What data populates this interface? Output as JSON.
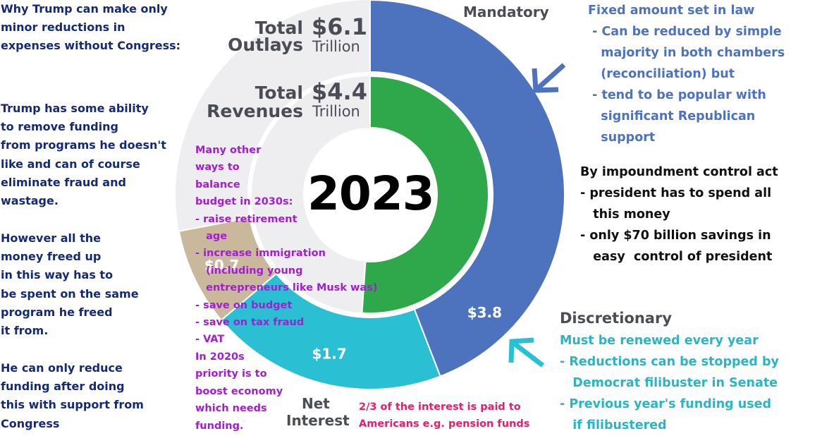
{
  "chart_data": {
    "type": "pie",
    "year_label": "2023",
    "outer_ring": {
      "title_line1": "Total",
      "title_line2": "Outlays",
      "amount": "$6.1",
      "unit": "Trillion",
      "total": 6.1,
      "slices": [
        {
          "name": "Mandatory",
          "value": 3.8,
          "label": "$3.8",
          "color": "#4e73be"
        },
        {
          "name": "Discretionary",
          "value": 1.7,
          "label": "$1.7",
          "color": "#2bbfd3"
        },
        {
          "name": "Net Interest",
          "value": 0.7,
          "label": "$0.7",
          "color": "#c9b89b"
        }
      ],
      "remainder_color": "#eeeef0"
    },
    "inner_ring": {
      "title_line1": "Total",
      "title_line2": "Revenues",
      "amount": "$4.4",
      "unit": "Trillion",
      "value": 4.4,
      "color": "#2ea84b",
      "remainder_color": "#eeeef0"
    },
    "category_labels": {
      "mandatory": "Mandatory",
      "discretionary": "Discretionary",
      "net_interest_line1": "Net",
      "net_interest_line2": "Interest"
    }
  },
  "annotations": {
    "left_title": "Why Trump can make only\nminor reductions in\nexpenses without Congress:",
    "left_funding": "Trump has some ability\nto remove funding\nfrom programs he doesn't\nlike and can of course\neliminate fraud and\nwastage.",
    "left_however": "However all the\nmoney freed up\nin this way has to\nbe spent on the same\nprogram he freed\nit from.",
    "left_support": "He can only reduce\nfunding after doing\nthis with support from\nCongress",
    "mandatory_note": "Fixed amount set in law\n - Can be reduced by simple\n   majority in both chambers\n   (reconciliation) but\n - tend to be popular with\n   significant Republican\n   support",
    "impoundment_note": "By impoundment control act\n- president has to spend all\n   this money\n- only $70 billion savings in\n   easy  control of president",
    "discretionary_note": "Must be renewed every year\n- Reductions can be stopped by\n   Democrat filibuster in Senate\n- Previous year's funding used\n   if filibustered",
    "balance_note": "Many other\nways to\nbalance\nbudget in 2030s:\n- raise retirement\n   age\n- increase immigration\n   (including young\n   entrepreneurs like Musk was)\n- save on budget\n- save on tax fraud\n- VAT\nIn 2020s\npriority is to\nboost economy\nwhich needs\nfunding.",
    "interest_note": "2/3 of the interest is paid to\nAmericans e.g. pension funds"
  },
  "icons": {
    "mandatory_arrow": "arrow-pointing-down-left-icon",
    "discretionary_arrow": "arrow-pointing-up-left-icon"
  },
  "colors": {
    "arrow": "#4e73be",
    "arrow_teal": "#2bbfd3"
  }
}
